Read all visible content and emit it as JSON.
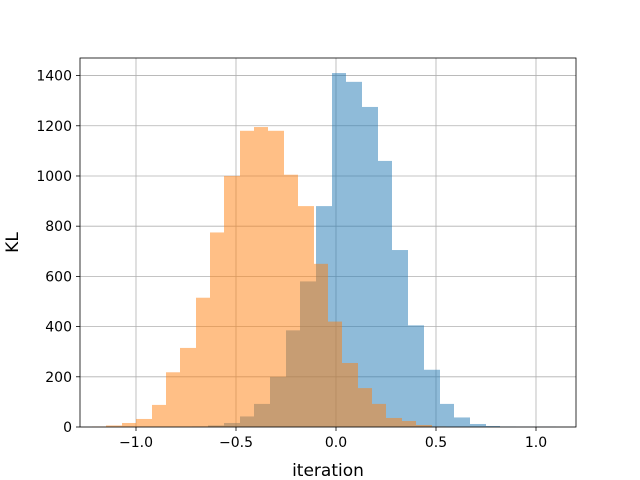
{
  "chart_data": {
    "type": "histogram",
    "xlabel": "iteration",
    "ylabel": "KL",
    "xlim": [
      -1.28,
      1.2
    ],
    "ylim": [
      0,
      1470
    ],
    "grid": true,
    "xticks": [
      -1.0,
      -0.5,
      0.0,
      0.5,
      1.0
    ],
    "xtick_labels": [
      "−1.0",
      "−0.5",
      "0.0",
      "0.5",
      "1.0"
    ],
    "yticks": [
      0,
      200,
      400,
      600,
      800,
      1000,
      1200,
      1400
    ],
    "ytick_labels": [
      "0",
      "200",
      "400",
      "600",
      "800",
      "1000",
      "1200",
      "1400"
    ],
    "series": [
      {
        "color": "#1f77b4",
        "opacity": 0.5,
        "bins": [
          {
            "x0": -0.72,
            "x1": -0.64,
            "value": 2
          },
          {
            "x0": -0.64,
            "x1": -0.56,
            "value": 6
          },
          {
            "x0": -0.56,
            "x1": -0.48,
            "value": 16
          },
          {
            "x0": -0.48,
            "x1": -0.41,
            "value": 42
          },
          {
            "x0": -0.41,
            "x1": -0.33,
            "value": 92
          },
          {
            "x0": -0.33,
            "x1": -0.25,
            "value": 200
          },
          {
            "x0": -0.25,
            "x1": -0.18,
            "value": 385
          },
          {
            "x0": -0.18,
            "x1": -0.1,
            "value": 580
          },
          {
            "x0": -0.1,
            "x1": -0.02,
            "value": 880
          },
          {
            "x0": -0.02,
            "x1": 0.05,
            "value": 1410
          },
          {
            "x0": 0.05,
            "x1": 0.13,
            "value": 1375
          },
          {
            "x0": 0.13,
            "x1": 0.21,
            "value": 1275
          },
          {
            "x0": 0.21,
            "x1": 0.28,
            "value": 1060
          },
          {
            "x0": 0.28,
            "x1": 0.36,
            "value": 705
          },
          {
            "x0": 0.36,
            "x1": 0.44,
            "value": 405
          },
          {
            "x0": 0.44,
            "x1": 0.52,
            "value": 228
          },
          {
            "x0": 0.52,
            "x1": 0.59,
            "value": 92
          },
          {
            "x0": 0.59,
            "x1": 0.67,
            "value": 38
          },
          {
            "x0": 0.67,
            "x1": 0.75,
            "value": 12
          },
          {
            "x0": 0.75,
            "x1": 0.82,
            "value": 4
          },
          {
            "x0": 0.82,
            "x1": 0.9,
            "value": 2
          },
          {
            "x0": 0.9,
            "x1": 1.1,
            "value": 1
          }
        ]
      },
      {
        "color": "#ff7f0e",
        "opacity": 0.5,
        "bins": [
          {
            "x0": -1.22,
            "x1": -1.15,
            "value": 2
          },
          {
            "x0": -1.15,
            "x1": -1.07,
            "value": 6
          },
          {
            "x0": -1.07,
            "x1": -1.0,
            "value": 16
          },
          {
            "x0": -1.0,
            "x1": -0.92,
            "value": 32
          },
          {
            "x0": -0.92,
            "x1": -0.85,
            "value": 88
          },
          {
            "x0": -0.85,
            "x1": -0.78,
            "value": 218
          },
          {
            "x0": -0.78,
            "x1": -0.7,
            "value": 315
          },
          {
            "x0": -0.7,
            "x1": -0.63,
            "value": 515
          },
          {
            "x0": -0.63,
            "x1": -0.56,
            "value": 775
          },
          {
            "x0": -0.56,
            "x1": -0.48,
            "value": 1000
          },
          {
            "x0": -0.48,
            "x1": -0.41,
            "value": 1180
          },
          {
            "x0": -0.41,
            "x1": -0.34,
            "value": 1195
          },
          {
            "x0": -0.34,
            "x1": -0.26,
            "value": 1180
          },
          {
            "x0": -0.26,
            "x1": -0.19,
            "value": 1005
          },
          {
            "x0": -0.19,
            "x1": -0.11,
            "value": 880
          },
          {
            "x0": -0.11,
            "x1": -0.04,
            "value": 650
          },
          {
            "x0": -0.04,
            "x1": 0.03,
            "value": 420
          },
          {
            "x0": 0.03,
            "x1": 0.11,
            "value": 255
          },
          {
            "x0": 0.11,
            "x1": 0.18,
            "value": 155
          },
          {
            "x0": 0.18,
            "x1": 0.25,
            "value": 92
          },
          {
            "x0": 0.25,
            "x1": 0.33,
            "value": 36
          },
          {
            "x0": 0.33,
            "x1": 0.4,
            "value": 24
          },
          {
            "x0": 0.4,
            "x1": 0.48,
            "value": 8
          },
          {
            "x0": 0.48,
            "x1": 0.55,
            "value": 2
          }
        ]
      }
    ]
  }
}
